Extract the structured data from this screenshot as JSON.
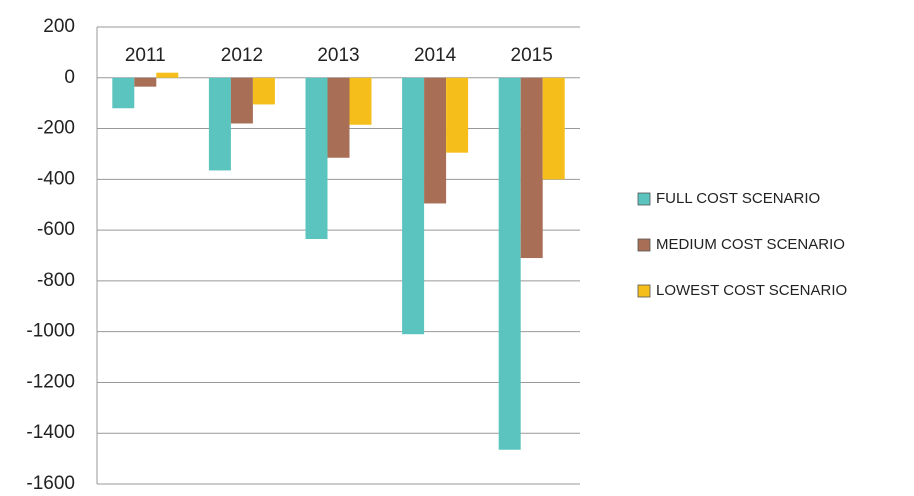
{
  "chart_data": {
    "type": "bar",
    "categories": [
      "2011",
      "2012",
      "2013",
      "2014",
      "2015"
    ],
    "series": [
      {
        "name": "FULL COST SCENARIO",
        "color": "#5bc4bf",
        "values": [
          -120,
          -365,
          -635,
          -1010,
          -1465
        ]
      },
      {
        "name": "MEDIUM COST SCENARIO",
        "color": "#a86f56",
        "values": [
          -35,
          -180,
          -315,
          -495,
          -710
        ]
      },
      {
        "name": "LOWEST COST SCENARIO",
        "color": "#f5be1b",
        "values": [
          20,
          -105,
          -185,
          -295,
          -400
        ]
      }
    ],
    "ylim": [
      -1600,
      200
    ],
    "yticks": [
      -1600,
      -1400,
      -1200,
      -1000,
      -800,
      -600,
      -400,
      -200,
      0,
      200
    ],
    "grid": true,
    "legend": "right"
  }
}
